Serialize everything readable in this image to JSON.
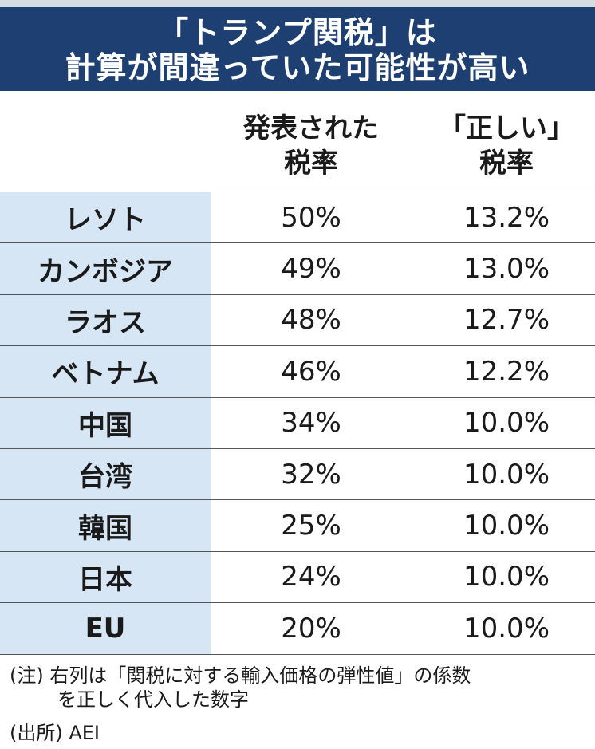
{
  "header": {
    "title_line1": "「トランプ関税」は",
    "title_line2": "計算が間違っていた可能性が高い"
  },
  "columns": {
    "announced_line1": "発表された",
    "announced_line2": "税率",
    "correct_line1": "「正しい」",
    "correct_line2": "税率"
  },
  "rows": [
    {
      "country": "レソト",
      "announced": "50%",
      "correct": "13.2%"
    },
    {
      "country": "カンボジア",
      "announced": "49%",
      "correct": "13.0%"
    },
    {
      "country": "ラオス",
      "announced": "48%",
      "correct": "12.7%"
    },
    {
      "country": "ベトナム",
      "announced": "46%",
      "correct": "12.2%"
    },
    {
      "country": "中国",
      "announced": "34%",
      "correct": "10.0%"
    },
    {
      "country": "台湾",
      "announced": "32%",
      "correct": "10.0%"
    },
    {
      "country": "韓国",
      "announced": "25%",
      "correct": "10.0%"
    },
    {
      "country": "日本",
      "announced": "24%",
      "correct": "10.0%"
    },
    {
      "country": "EU",
      "announced": "20%",
      "correct": "10.0%"
    }
  ],
  "notes": {
    "note_line1": "(注) 右列は「関税に対する輸入価格の弾性値」の係数",
    "note_line2": "を正しく代入した数字",
    "source": "(出所) AEI"
  }
}
